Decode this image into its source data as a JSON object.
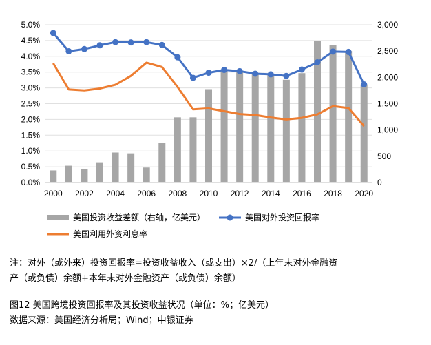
{
  "chart_data": {
    "type": "bar+line",
    "x": [
      2000,
      2001,
      2002,
      2003,
      2004,
      2005,
      2006,
      2007,
      2008,
      2009,
      2010,
      2011,
      2012,
      2013,
      2014,
      2015,
      2016,
      2017,
      2018,
      2019,
      2020
    ],
    "x_tick_labels": [
      "2000",
      "2002",
      "2004",
      "2006",
      "2008",
      "2010",
      "2012",
      "2014",
      "2016",
      "2018",
      "2020"
    ],
    "left_axis": {
      "ticks": [
        "0.0%",
        "0.5%",
        "1.0%",
        "1.5%",
        "2.0%",
        "2.5%",
        "3.0%",
        "3.5%",
        "4.0%",
        "4.5%",
        "5.0%"
      ],
      "ylim": [
        0,
        5.0
      ]
    },
    "right_axis": {
      "ticks": [
        "0",
        "500",
        "1,000",
        "1,500",
        "2,000",
        "2,500",
        "3,000"
      ],
      "ylim": [
        0,
        3000
      ]
    },
    "series": [
      {
        "name": "美国投资收益差额（右轴，亿美元）",
        "kind": "bar",
        "axis": "right",
        "color": "#a6a6a6",
        "values": [
          230,
          320,
          260,
          385,
          570,
          555,
          285,
          750,
          1240,
          1240,
          1775,
          2130,
          2120,
          2080,
          2055,
          1955,
          2080,
          2690,
          2610,
          2500,
          1865
        ]
      },
      {
        "name": "美国对外投资回报率",
        "kind": "line",
        "axis": "left",
        "color": "#4472c4",
        "marker": "circle",
        "values": [
          4.74,
          4.16,
          4.23,
          4.35,
          4.45,
          4.44,
          4.45,
          4.36,
          3.97,
          3.32,
          3.48,
          3.57,
          3.53,
          3.45,
          3.43,
          3.38,
          3.58,
          3.81,
          4.15,
          4.14,
          3.11
        ]
      },
      {
        "name": "美国利用外资利息率",
        "kind": "line",
        "axis": "left",
        "color": "#ed7d31",
        "values": [
          3.78,
          2.95,
          2.92,
          2.98,
          3.1,
          3.38,
          3.8,
          3.66,
          3.03,
          2.32,
          2.35,
          2.26,
          2.17,
          2.14,
          2.06,
          2.0,
          2.05,
          2.16,
          2.42,
          2.36,
          1.79
        ]
      }
    ]
  },
  "notes": {
    "line1": "注：对外（或外来）投资回报率=投资收益收入（或支出）×2/（上年末对外金融资",
    "line2": "产（或负债）余额+本年末对外金融资产（或负债）余额）"
  },
  "caption": "图12  美国跨境投资回报率及其投资收益状况（单位：%；亿美元）",
  "source": "数据来源：美国经济分析局；Wind；中银证券"
}
